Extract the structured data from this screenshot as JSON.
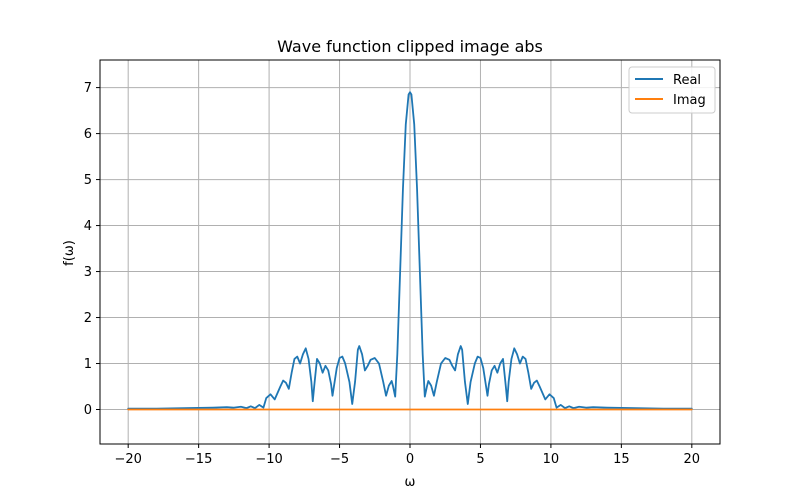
{
  "chart_data": {
    "type": "line",
    "title": "Wave function clipped image abs",
    "xlabel": "ω",
    "ylabel": "f(ω)",
    "xlim": [
      -22,
      22
    ],
    "ylim": [
      -0.75,
      7.6
    ],
    "xticks": [
      -20,
      -15,
      -10,
      -5,
      0,
      5,
      10,
      15,
      20
    ],
    "xtick_labels": [
      "−20",
      "−15",
      "−10",
      "−5",
      "0",
      "5",
      "10",
      "15",
      "20"
    ],
    "yticks": [
      0,
      1,
      2,
      3,
      4,
      5,
      6,
      7
    ],
    "ytick_labels": [
      "0",
      "1",
      "2",
      "3",
      "4",
      "5",
      "6",
      "7"
    ],
    "grid": true,
    "legend_position": "top-right",
    "series": [
      {
        "name": "Real",
        "color": "#1f77b4",
        "points": [
          [
            -20,
            0.02
          ],
          [
            -18,
            0.02
          ],
          [
            -16,
            0.03
          ],
          [
            -14,
            0.04
          ],
          [
            -13,
            0.05
          ],
          [
            -12.5,
            0.04
          ],
          [
            -12,
            0.06
          ],
          [
            -11.6,
            0.03
          ],
          [
            -11.3,
            0.07
          ],
          [
            -11,
            0.03
          ],
          [
            -10.7,
            0.1
          ],
          [
            -10.4,
            0.04
          ],
          [
            -10.2,
            0.25
          ],
          [
            -9.9,
            0.33
          ],
          [
            -9.6,
            0.22
          ],
          [
            -9.2,
            0.5
          ],
          [
            -9,
            0.63
          ],
          [
            -8.8,
            0.58
          ],
          [
            -8.6,
            0.45
          ],
          [
            -8.4,
            0.8
          ],
          [
            -8.2,
            1.1
          ],
          [
            -8.0,
            1.15
          ],
          [
            -7.8,
            1.0
          ],
          [
            -7.6,
            1.2
          ],
          [
            -7.4,
            1.33
          ],
          [
            -7.2,
            1.1
          ],
          [
            -7.0,
            0.6
          ],
          [
            -6.9,
            0.18
          ],
          [
            -6.8,
            0.5
          ],
          [
            -6.6,
            1.1
          ],
          [
            -6.4,
            1.0
          ],
          [
            -6.2,
            0.8
          ],
          [
            -6.0,
            0.95
          ],
          [
            -5.8,
            0.85
          ],
          [
            -5.6,
            0.55
          ],
          [
            -5.5,
            0.3
          ],
          [
            -5.4,
            0.5
          ],
          [
            -5.2,
            0.9
          ],
          [
            -5.0,
            1.12
          ],
          [
            -4.8,
            1.15
          ],
          [
            -4.6,
            1.0
          ],
          [
            -4.3,
            0.6
          ],
          [
            -4.1,
            0.12
          ],
          [
            -3.9,
            0.6
          ],
          [
            -3.7,
            1.3
          ],
          [
            -3.6,
            1.38
          ],
          [
            -3.4,
            1.2
          ],
          [
            -3.2,
            0.85
          ],
          [
            -3.0,
            0.95
          ],
          [
            -2.8,
            1.08
          ],
          [
            -2.5,
            1.12
          ],
          [
            -2.2,
            1.0
          ],
          [
            -1.9,
            0.6
          ],
          [
            -1.7,
            0.3
          ],
          [
            -1.5,
            0.52
          ],
          [
            -1.3,
            0.62
          ],
          [
            -1.2,
            0.5
          ],
          [
            -1.05,
            0.28
          ],
          [
            -0.9,
            1.2
          ],
          [
            -0.7,
            3.0
          ],
          [
            -0.5,
            4.8
          ],
          [
            -0.3,
            6.2
          ],
          [
            -0.1,
            6.85
          ],
          [
            0,
            6.9
          ],
          [
            0.1,
            6.85
          ],
          [
            0.3,
            6.2
          ],
          [
            0.5,
            4.8
          ],
          [
            0.7,
            3.0
          ],
          [
            0.9,
            1.2
          ],
          [
            1.05,
            0.28
          ],
          [
            1.2,
            0.5
          ],
          [
            1.3,
            0.62
          ],
          [
            1.5,
            0.52
          ],
          [
            1.7,
            0.3
          ],
          [
            1.9,
            0.6
          ],
          [
            2.2,
            1.0
          ],
          [
            2.5,
            1.12
          ],
          [
            2.8,
            1.08
          ],
          [
            3.0,
            0.95
          ],
          [
            3.2,
            0.85
          ],
          [
            3.4,
            1.2
          ],
          [
            3.6,
            1.38
          ],
          [
            3.7,
            1.3
          ],
          [
            3.9,
            0.6
          ],
          [
            4.1,
            0.12
          ],
          [
            4.3,
            0.6
          ],
          [
            4.6,
            1.0
          ],
          [
            4.8,
            1.15
          ],
          [
            5.0,
            1.12
          ],
          [
            5.2,
            0.9
          ],
          [
            5.4,
            0.5
          ],
          [
            5.5,
            0.3
          ],
          [
            5.6,
            0.55
          ],
          [
            5.8,
            0.85
          ],
          [
            6.0,
            0.95
          ],
          [
            6.2,
            0.8
          ],
          [
            6.4,
            1.0
          ],
          [
            6.6,
            1.1
          ],
          [
            6.8,
            0.5
          ],
          [
            6.9,
            0.18
          ],
          [
            7.0,
            0.6
          ],
          [
            7.2,
            1.1
          ],
          [
            7.4,
            1.33
          ],
          [
            7.6,
            1.2
          ],
          [
            7.8,
            1.0
          ],
          [
            8.0,
            1.15
          ],
          [
            8.2,
            1.1
          ],
          [
            8.4,
            0.8
          ],
          [
            8.6,
            0.45
          ],
          [
            8.8,
            0.58
          ],
          [
            9,
            0.63
          ],
          [
            9.2,
            0.5
          ],
          [
            9.6,
            0.22
          ],
          [
            9.9,
            0.33
          ],
          [
            10.2,
            0.25
          ],
          [
            10.4,
            0.04
          ],
          [
            10.7,
            0.1
          ],
          [
            11,
            0.03
          ],
          [
            11.3,
            0.07
          ],
          [
            11.6,
            0.03
          ],
          [
            12,
            0.06
          ],
          [
            12.5,
            0.04
          ],
          [
            13,
            0.05
          ],
          [
            14,
            0.04
          ],
          [
            16,
            0.03
          ],
          [
            18,
            0.02
          ],
          [
            20,
            0.02
          ]
        ]
      },
      {
        "name": "Imag",
        "color": "#ff7f0e",
        "points": [
          [
            -20,
            0.0
          ],
          [
            20,
            0.0
          ]
        ]
      }
    ]
  }
}
